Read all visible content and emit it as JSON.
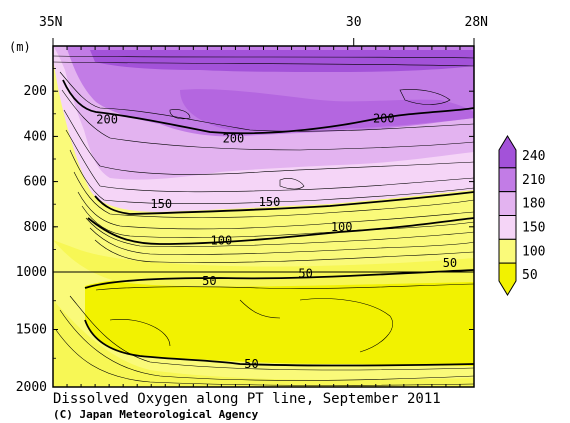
{
  "chart_data": {
    "type": "contour",
    "title": "Dissolved Oxygen along PT line, September 2011",
    "credit": "(C) Japan Meteorological Agency",
    "y_unit_label": "(m)",
    "x_ticks": [
      {
        "label": "35N",
        "lat": 35
      },
      {
        "label": "30",
        "lat": 30
      },
      {
        "label": "28N",
        "lat": 28
      }
    ],
    "y_ticks": [
      {
        "label": "200",
        "depth": 200
      },
      {
        "label": "400",
        "depth": 400
      },
      {
        "label": "600",
        "depth": 600
      },
      {
        "label": "800",
        "depth": 800
      },
      {
        "label": "1000",
        "depth": 1000
      },
      {
        "label": "1500",
        "depth": 1500
      },
      {
        "label": "2000",
        "depth": 2000
      }
    ],
    "colorbar": {
      "levels": [
        "240",
        "210",
        "180",
        "150",
        "100",
        "50"
      ],
      "colors": [
        "#a352d9",
        "#c27ce6",
        "#e3b3f0",
        "#f5d5f7",
        "#fafa7a",
        "#f2f200"
      ]
    },
    "contour_labels": [
      {
        "text": "200",
        "lat": 34.1,
        "depth": 325
      },
      {
        "text": "200",
        "lat": 32.0,
        "depth": 410
      },
      {
        "text": "200",
        "lat": 29.5,
        "depth": 320
      },
      {
        "text": "150",
        "lat": 33.2,
        "depth": 700
      },
      {
        "text": "150",
        "lat": 31.4,
        "depth": 690
      },
      {
        "text": "100",
        "lat": 32.2,
        "depth": 860
      },
      {
        "text": "100",
        "lat": 30.2,
        "depth": 800
      },
      {
        "text": "50",
        "lat": 32.4,
        "depth": 1080
      },
      {
        "text": "50",
        "lat": 30.8,
        "depth": 1015
      },
      {
        "text": "50",
        "lat": 28.4,
        "depth": 960
      },
      {
        "text": "50",
        "lat": 31.7,
        "depth": 1800
      }
    ]
  }
}
